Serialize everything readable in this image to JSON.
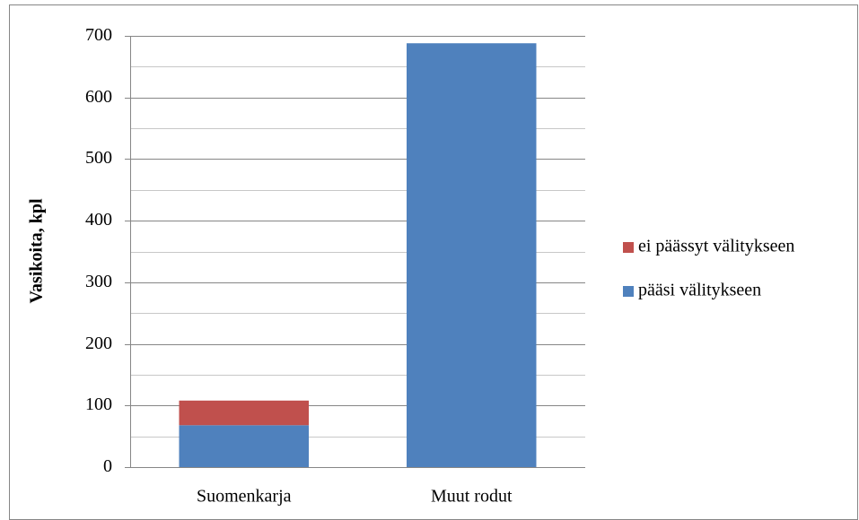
{
  "chart_data": {
    "type": "stacked_bar",
    "y_axis_label": "Vasikoita, kpl",
    "categories": [
      "Suomenkarja",
      "Muut rodut"
    ],
    "series": [
      {
        "name": "pääsi välitykseen",
        "color": "#4f81bd",
        "values": [
          68,
          688
        ]
      },
      {
        "name": "ei päässyt välitykseen",
        "color": "#c0504d",
        "values": [
          40,
          0
        ]
      }
    ],
    "ylim": [
      0,
      700
    ],
    "yticks": [
      0,
      100,
      200,
      300,
      400,
      500,
      600,
      700
    ],
    "minor_yticks": [
      50,
      150,
      250,
      350,
      450,
      550,
      650
    ],
    "grid": true,
    "legend": "right"
  }
}
